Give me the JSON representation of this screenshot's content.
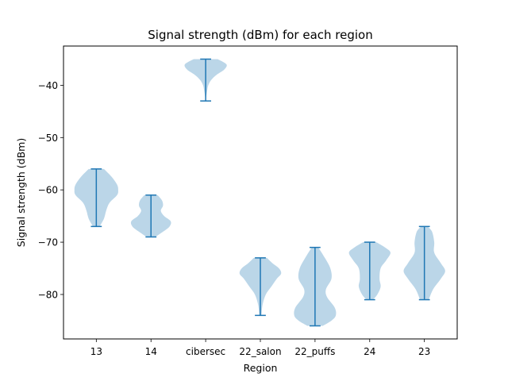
{
  "chart_data": {
    "type": "violin",
    "title": "Signal strength (dBm) for each region",
    "xlabel": "Region",
    "ylabel": "Signal strength (dBm)",
    "categories": [
      "13",
      "14",
      "cibersec",
      "22_salon",
      "22_puffs",
      "24",
      "23"
    ],
    "ylim": [
      -88.5,
      -32.5
    ],
    "yticks": [
      -80,
      -70,
      -60,
      -50,
      -40
    ],
    "ytick_labels": [
      "−80",
      "−70",
      "−60",
      "−50",
      "−40"
    ],
    "grid": false,
    "colors": {
      "fill": "#1f77b4",
      "fill_opacity": 0.3,
      "line": "#1f77b4"
    },
    "series": [
      {
        "category": "13",
        "min": -67,
        "max": -56,
        "density": [
          [
            -67,
            0.15
          ],
          [
            -65.5,
            0.35
          ],
          [
            -64,
            0.45
          ],
          [
            -62.5,
            0.6
          ],
          [
            -61,
            0.95
          ],
          [
            -60,
            1.0
          ],
          [
            -59,
            0.95
          ],
          [
            -57.5,
            0.7
          ],
          [
            -56,
            0.35
          ]
        ]
      },
      {
        "category": "14",
        "min": -69,
        "max": -61,
        "density": [
          [
            -69,
            0.2
          ],
          [
            -68,
            0.55
          ],
          [
            -67,
            0.85
          ],
          [
            -66,
            0.9
          ],
          [
            -65,
            0.6
          ],
          [
            -64,
            0.45
          ],
          [
            -63,
            0.55
          ],
          [
            -62,
            0.5
          ],
          [
            -61,
            0.3
          ]
        ]
      },
      {
        "category": "cibersec",
        "min": -43,
        "max": -35,
        "density": [
          [
            -43,
            0.0
          ],
          [
            -42,
            0.03
          ],
          [
            -41,
            0.07
          ],
          [
            -40,
            0.12
          ],
          [
            -39,
            0.25
          ],
          [
            -38,
            0.5
          ],
          [
            -37,
            0.85
          ],
          [
            -36,
            0.95
          ],
          [
            -35,
            0.55
          ]
        ]
      },
      {
        "category": "22_salon",
        "min": -84,
        "max": -73,
        "density": [
          [
            -84,
            0.05
          ],
          [
            -82,
            0.1
          ],
          [
            -80,
            0.25
          ],
          [
            -78.5,
            0.5
          ],
          [
            -77,
            0.75
          ],
          [
            -76,
            0.95
          ],
          [
            -75,
            0.85
          ],
          [
            -74,
            0.55
          ],
          [
            -73,
            0.3
          ]
        ]
      },
      {
        "category": "22_puffs",
        "min": -86,
        "max": -71,
        "density": [
          [
            -86,
            0.35
          ],
          [
            -85,
            0.75
          ],
          [
            -84,
            0.95
          ],
          [
            -82.5,
            0.9
          ],
          [
            -80.5,
            0.55
          ],
          [
            -79,
            0.5
          ],
          [
            -77,
            0.75
          ],
          [
            -75,
            0.7
          ],
          [
            -73,
            0.45
          ],
          [
            -71,
            0.15
          ]
        ]
      },
      {
        "category": "24",
        "min": -81,
        "max": -70,
        "density": [
          [
            -81,
            0.15
          ],
          [
            -80,
            0.35
          ],
          [
            -78.5,
            0.5
          ],
          [
            -77,
            0.45
          ],
          [
            -75,
            0.5
          ],
          [
            -73.5,
            0.75
          ],
          [
            -72,
            0.95
          ],
          [
            -71,
            0.7
          ],
          [
            -70,
            0.3
          ]
        ]
      },
      {
        "category": "23",
        "min": -81,
        "max": -67,
        "density": [
          [
            -81,
            0.2
          ],
          [
            -79,
            0.4
          ],
          [
            -77,
            0.75
          ],
          [
            -75.5,
            0.95
          ],
          [
            -74,
            0.75
          ],
          [
            -72,
            0.45
          ],
          [
            -70,
            0.45
          ],
          [
            -68,
            0.35
          ],
          [
            -67,
            0.15
          ]
        ]
      }
    ]
  }
}
